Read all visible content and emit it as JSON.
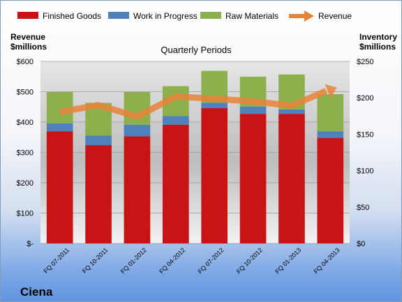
{
  "company_name": "Ciena",
  "chart_data": {
    "type": "bar",
    "title": "Quarterly Periods",
    "categories": [
      "FQ 07-2011",
      "FQ 10-2011",
      "FQ 01-2012",
      "FQ 04-2012",
      "FQ 07-2012",
      "FQ 10-2012",
      "FQ 01-2013",
      "FQ 04-2013"
    ],
    "left_axis": {
      "label_line1": "Revenue",
      "label_line2": "$millions",
      "min": 0,
      "max": 600,
      "ticks": [
        0,
        100,
        200,
        300,
        400,
        500,
        600
      ],
      "tick_labels": [
        "$-",
        "$100",
        "$200",
        "$300",
        "$400",
        "$500",
        "$600"
      ]
    },
    "right_axis": {
      "label_line1": "Inventory",
      "label_line2": "$millions",
      "min": 0,
      "max": 250,
      "ticks": [
        0,
        50,
        100,
        150,
        200,
        250
      ],
      "tick_labels": [
        "$0",
        "$50",
        "$100",
        "$150",
        "$200",
        "$250"
      ]
    },
    "stacked_series_axis": "right",
    "series": [
      {
        "name": "Finished Goods",
        "color": "#c81414",
        "values": [
          154,
          135,
          147,
          163,
          186,
          178,
          178,
          145
        ]
      },
      {
        "name": "Work in Progress",
        "color": "#4f81bd",
        "values": [
          11,
          13,
          16,
          12,
          7,
          10,
          6,
          9
        ]
      },
      {
        "name": "Raw Materials",
        "color": "#8cb14c",
        "values": [
          43,
          45,
          45,
          41,
          44,
          41,
          48,
          51
        ]
      }
    ],
    "line_series": {
      "name": "Revenue",
      "axis": "left",
      "color": "#e8833a",
      "values": [
        433,
        456,
        418,
        484,
        477,
        468,
        454,
        505
      ]
    },
    "grid": true,
    "legend_position": "top"
  }
}
